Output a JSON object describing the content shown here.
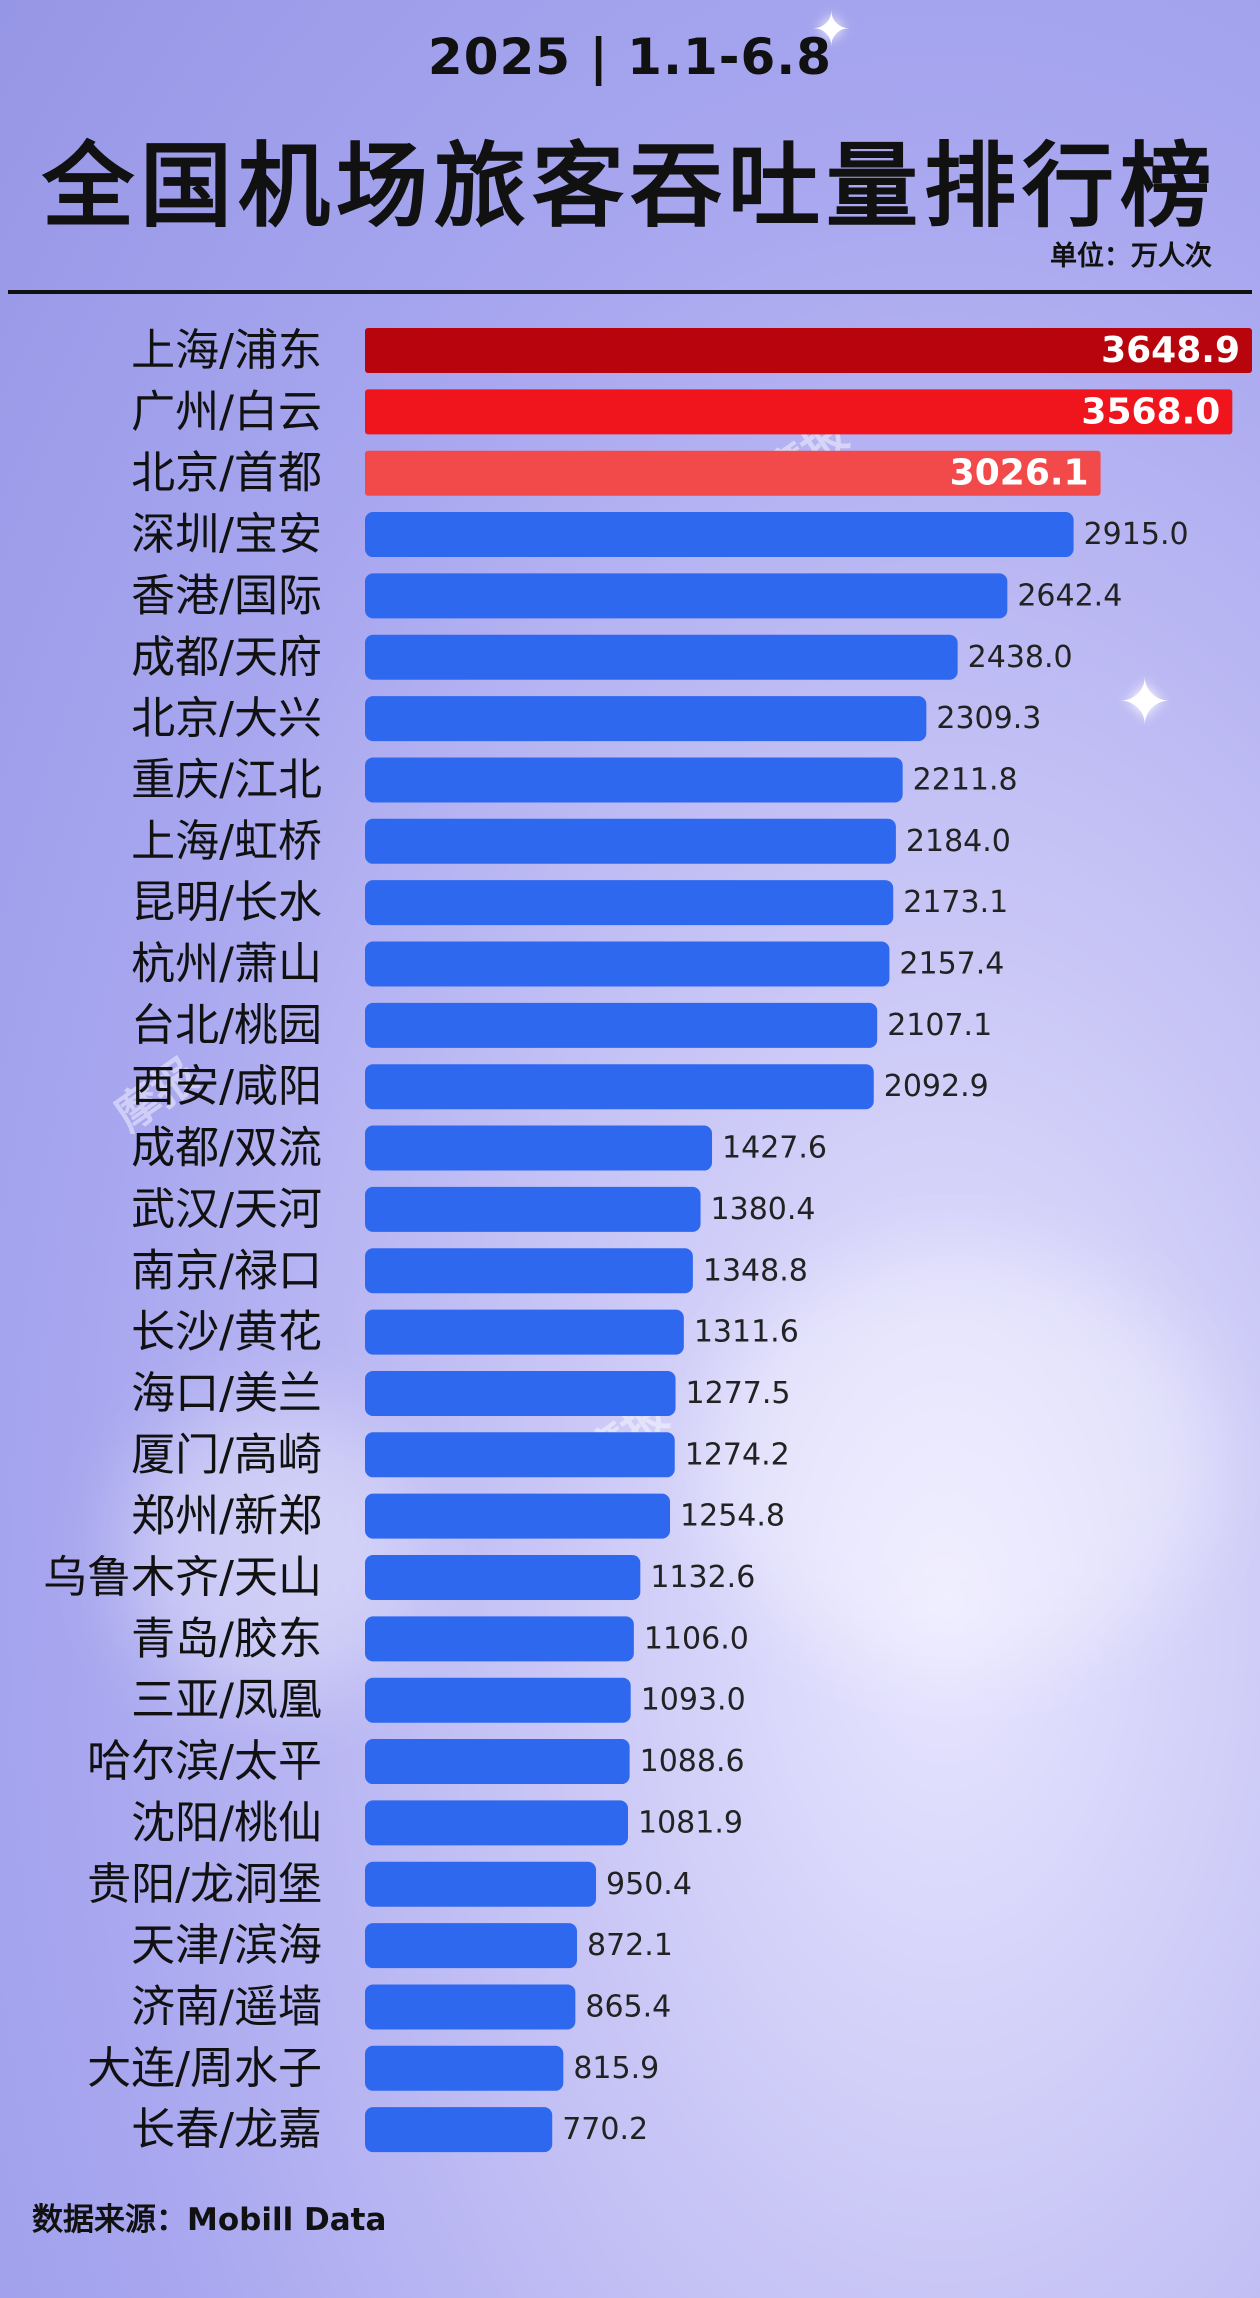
{
  "header": {
    "subtitle": "2025 | 1.1-6.8",
    "title": "全国机场旅客吞吐量排行榜",
    "unit": "单位：万人次"
  },
  "footer": {
    "source": "数据来源：Mobill Data"
  },
  "watermark": "摩报",
  "colors": {
    "top1": "#b8050d",
    "top2": "#f0141c",
    "top3": "#f24a4a",
    "default": "#2e68ef"
  },
  "chart_data": {
    "type": "bar",
    "orientation": "horizontal",
    "title": "全国机场旅客吞吐量排行榜",
    "categories": [
      "上海/浦东",
      "广州/白云",
      "北京/首都",
      "深圳/宝安",
      "香港/国际",
      "成都/天府",
      "北京/大兴",
      "重庆/江北",
      "上海/虹桥",
      "昆明/长水",
      "杭州/萧山",
      "台北/桃园",
      "西安/咸阳",
      "成都/双流",
      "武汉/天河",
      "南京/禄口",
      "长沙/黄花",
      "海口/美兰",
      "厦门/高崎",
      "郑州/新郑",
      "乌鲁木齐/天山",
      "青岛/胶东",
      "三亚/凤凰",
      "哈尔滨/太平",
      "沈阳/桃仙",
      "贵阳/龙洞堡",
      "天津/滨海",
      "济南/遥墙",
      "大连/周水子",
      "长春/龙嘉"
    ],
    "values": [
      3648.9,
      3568.0,
      3026.1,
      2915.0,
      2642.4,
      2438.0,
      2309.3,
      2211.8,
      2184.0,
      2173.1,
      2157.4,
      2107.1,
      2092.9,
      1427.6,
      1380.4,
      1348.8,
      1311.6,
      1277.5,
      1274.2,
      1254.8,
      1132.6,
      1106.0,
      1093.0,
      1088.6,
      1081.9,
      950.4,
      872.1,
      865.4,
      815.9,
      770.2
    ],
    "value_labels": [
      "3648.9",
      "3568.0",
      "3026.1",
      "2915.0",
      "2642.4",
      "2438.0",
      "2309.3",
      "2211.8",
      "2184.0",
      "2173.1",
      "2157.4",
      "2107.1",
      "2092.9",
      "1427.6",
      "1380.4",
      "1348.8",
      "1311.6",
      "1277.5",
      "1274.2",
      "1254.8",
      "1132.6",
      "1106.0",
      "1093.0",
      "1088.6",
      "1081.9",
      "950.4",
      "872.1",
      "865.4",
      "815.9",
      "770.2"
    ],
    "xlim": [
      0,
      3648.9
    ],
    "grid": false
  }
}
